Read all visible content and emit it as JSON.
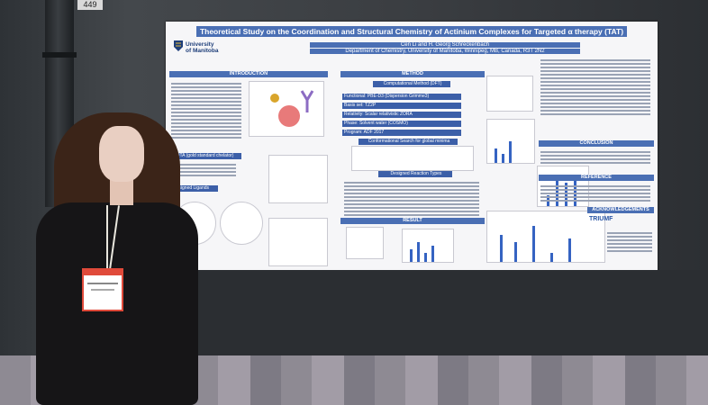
{
  "scene": {
    "description_free": true,
    "booth_number": "449"
  },
  "poster": {
    "title": "Theoretical Study on the Coordination and Structural Chemistry of Actinium Complexes for Targeted α therapy (TAT)",
    "authors": "Cen Li and H. Georg Schreckenbach",
    "affiliation": "Department of Chemistry, University of Manitoba, Winnipeg, MB, Canada, R3T 2N2",
    "logo_line1": "University",
    "logo_line2": "of Manitoba",
    "sections": {
      "introduction": "INTRODUCTION",
      "method": "METHOD",
      "result": "RESULT",
      "conclusion": "CONCLUSION",
      "reference": "REFERENCE",
      "acknowledgements": "ACKNOWLEDGEMENTS"
    },
    "method_boxes": [
      "Computational Method (DFT)",
      "Functional: PBE-D3 (Dispersion Grimme3)",
      "Basis set: TZ2P",
      "Relativity: Scalar relativistic ZORA",
      "Phase: Solvent water (COSMO)",
      "Program: ADF 2017"
    ],
    "subheads": {
      "conformational": "Conformational Search for global minima",
      "reaction_types": "Designed Reaction Types",
      "dota": "DOTA (gold standard chelator)",
      "ligands": "Designed Ligands"
    },
    "sponsor_1": "TRIUMF"
  }
}
